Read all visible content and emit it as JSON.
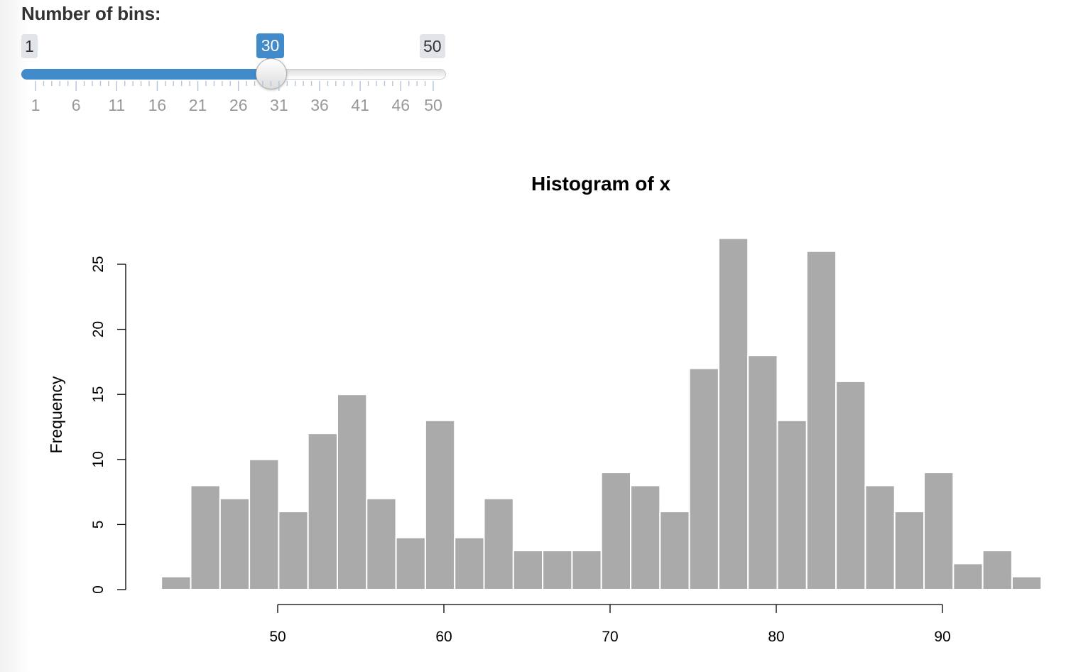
{
  "slider": {
    "label": "Number of bins:",
    "min": 1,
    "max": 50,
    "value": 30,
    "min_label": "1",
    "max_label": "50",
    "value_label": "30",
    "grid_labels": [
      "1",
      "6",
      "11",
      "16",
      "21",
      "26",
      "31",
      "36",
      "41",
      "46",
      "50"
    ],
    "accent_color": "#428bca"
  },
  "chart_data": {
    "type": "bar",
    "title": "Histogram of x",
    "xlabel": "",
    "ylabel": "Frequency",
    "bin_start": 43.0,
    "bin_width": 1.765,
    "values": [
      1,
      8,
      7,
      10,
      6,
      12,
      15,
      7,
      4,
      13,
      4,
      7,
      3,
      3,
      3,
      9,
      8,
      6,
      17,
      27,
      18,
      13,
      26,
      16,
      8,
      6,
      9,
      2,
      3,
      1
    ],
    "xlim": [
      43,
      96
    ],
    "ylim": [
      0,
      25
    ],
    "x_ticks": [
      50,
      60,
      70,
      80,
      90
    ],
    "x_tick_labels": [
      "50",
      "60",
      "70",
      "80",
      "90"
    ],
    "y_ticks": [
      0,
      5,
      10,
      15,
      20,
      25
    ],
    "y_tick_labels": [
      "0",
      "5",
      "10",
      "15",
      "20",
      "25"
    ],
    "bar_color": "#aaaaaa",
    "grid": false
  }
}
